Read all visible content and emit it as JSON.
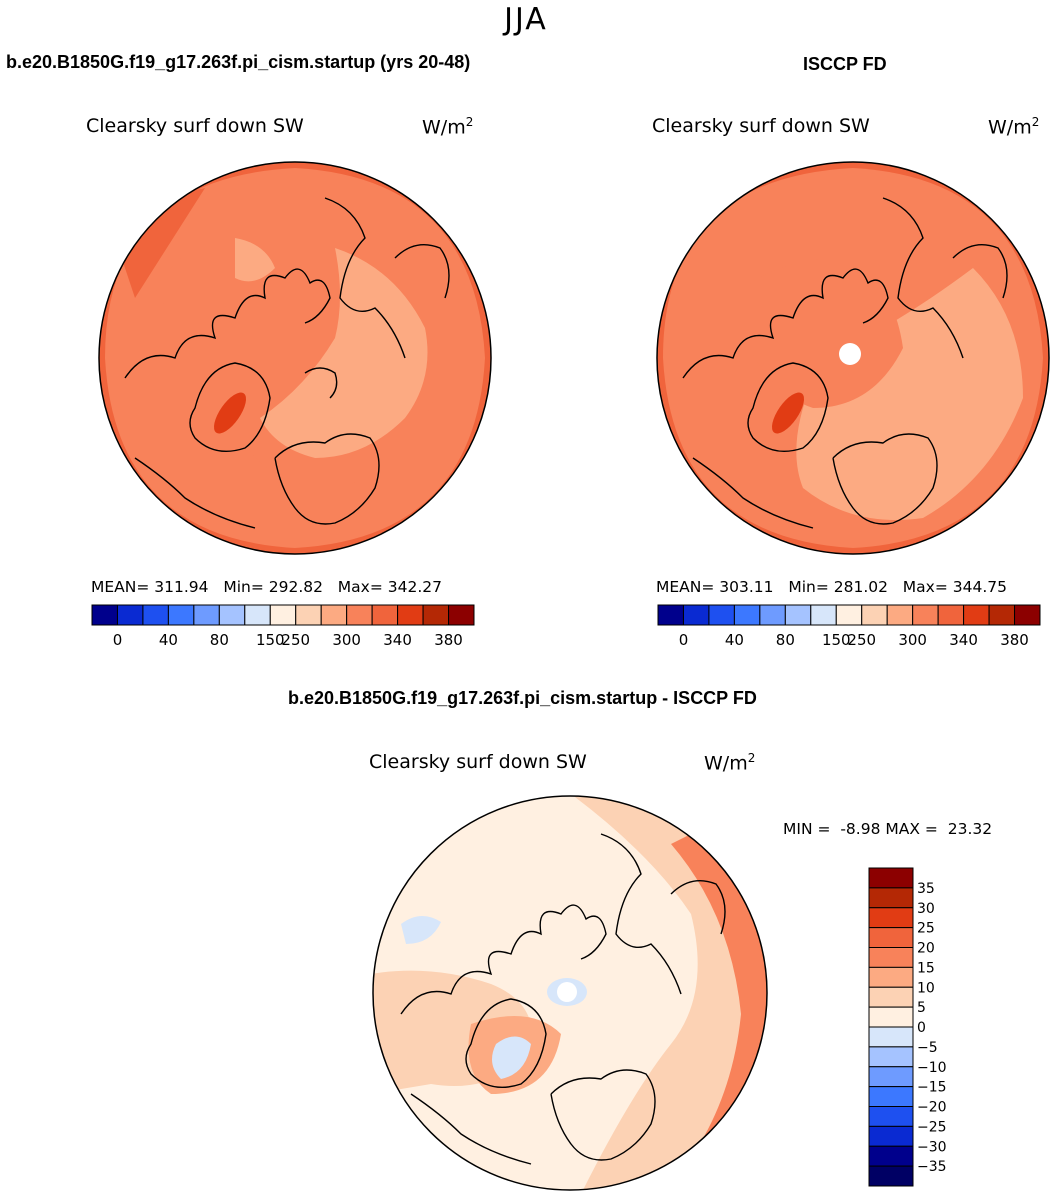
{
  "season": "JJA",
  "panels": [
    {
      "header": "b.e20.B1850G.f19_g17.263f.pi_cism.startup (yrs 20-48)",
      "variable": "Clearsky surf down SW",
      "units_base": "W/m",
      "units_exp": "2",
      "mean_label": "MEAN=",
      "mean": "311.94",
      "min_label": "Min=",
      "min": "292.82",
      "max_label": "Max=",
      "max": "342.27"
    },
    {
      "header": "ISCCP FD",
      "variable": "Clearsky surf down SW",
      "units_base": "W/m",
      "units_exp": "2",
      "mean_label": "MEAN=",
      "mean": "303.11",
      "min_label": "Min=",
      "min": "281.02",
      "max_label": "Max=",
      "max": "344.75"
    }
  ],
  "diff_panel": {
    "header": "b.e20.B1850G.f19_g17.263f.pi_cism.startup - ISCCP FD",
    "variable": "Clearsky surf down SW",
    "units_base": "W/m",
    "units_exp": "2",
    "min_label": "MIN =",
    "min": "-8.98",
    "max_label": "MAX =",
    "max": "23.32"
  },
  "chart_data": [
    {
      "type": "heatmap",
      "projection": "north-polar-stereographic",
      "title": "Clearsky surf down SW",
      "units": "W/m2",
      "mean": 311.94,
      "min": 292.82,
      "max": 342.27,
      "colorbar": {
        "orientation": "horizontal",
        "tick_labels": [
          "0",
          "40",
          "80",
          "150",
          "250",
          "300",
          "340",
          "380"
        ],
        "colors": [
          "#00008c",
          "#0a2ad2",
          "#1e50f0",
          "#3c78ff",
          "#6e9bff",
          "#a5c3ff",
          "#d7e6fa",
          "#fff0e1",
          "#fcd2b4",
          "#fcaa82",
          "#f8825a",
          "#f0643c",
          "#e13c14",
          "#b42805",
          "#8c0000"
        ]
      }
    },
    {
      "type": "heatmap",
      "projection": "north-polar-stereographic",
      "title": "Clearsky surf down SW",
      "units": "W/m2",
      "mean": 303.11,
      "min": 281.02,
      "max": 344.75,
      "colorbar": {
        "orientation": "horizontal",
        "tick_labels": [
          "0",
          "40",
          "80",
          "150",
          "250",
          "300",
          "340",
          "380"
        ],
        "colors": [
          "#00008c",
          "#0a2ad2",
          "#1e50f0",
          "#3c78ff",
          "#6e9bff",
          "#a5c3ff",
          "#d7e6fa",
          "#fff0e1",
          "#fcd2b4",
          "#fcaa82",
          "#f8825a",
          "#f0643c",
          "#e13c14",
          "#b42805",
          "#8c0000"
        ]
      }
    },
    {
      "type": "heatmap",
      "projection": "north-polar-stereographic",
      "title": "Clearsky surf down SW",
      "units": "W/m2",
      "min": -8.98,
      "max": 23.32,
      "colorbar": {
        "orientation": "vertical",
        "tick_labels": [
          "35",
          "30",
          "25",
          "20",
          "15",
          "10",
          "5",
          "0",
          "−5",
          "−10",
          "−15",
          "−20",
          "−25",
          "−30",
          "−35"
        ],
        "colors": [
          "#8c0000",
          "#b42805",
          "#e13c14",
          "#f0643c",
          "#f8825a",
          "#fcaa82",
          "#fcd2b4",
          "#fff0e1",
          "#d7e6fa",
          "#a5c3ff",
          "#6e9bff",
          "#3c78ff",
          "#1e50f0",
          "#0a2ad2",
          "#00008c",
          "#000064"
        ]
      }
    }
  ]
}
